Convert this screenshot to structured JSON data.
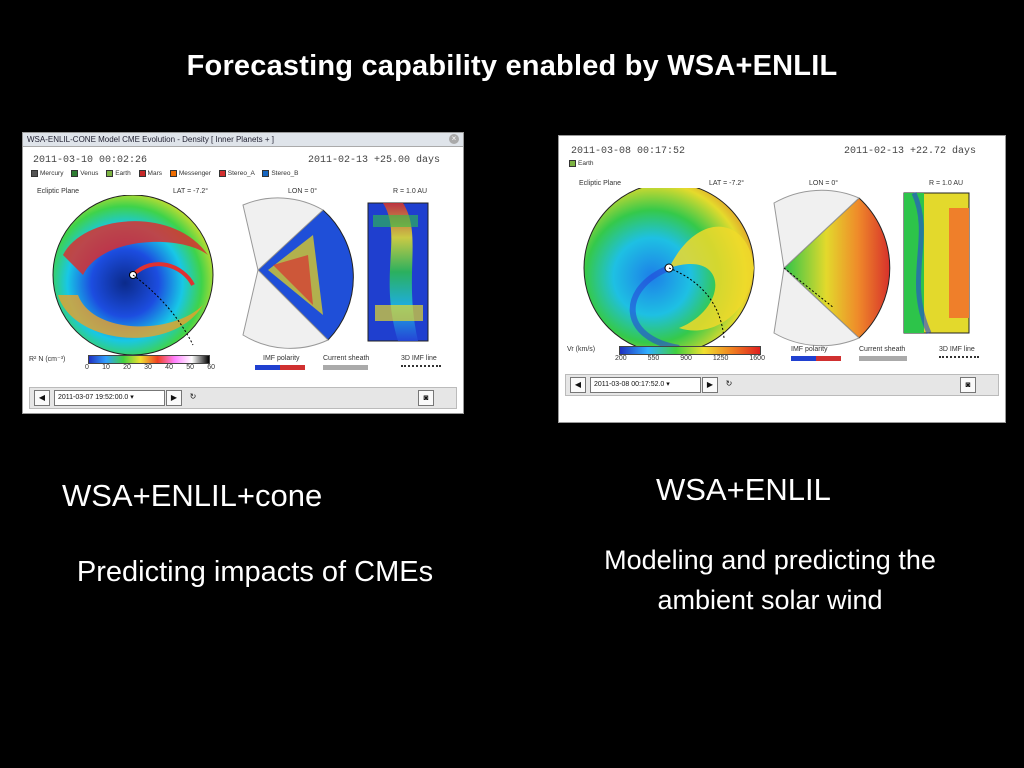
{
  "title": "Forecasting capability enabled by WSA+ENLIL",
  "left": {
    "window_title": "WSA-ENLIL-CONE Model CME Evolution - Density [ Inner Planets + ]",
    "timestamp": "2011-03-10 00:02:26",
    "run_time": "2011-02-13 +25.00 days",
    "planets": [
      "Mercury",
      "Venus",
      "Earth",
      "Mars",
      "Messenger",
      "Stereo_A",
      "Stereo_B"
    ],
    "planet_colors": [
      "#555555",
      "#2e7d32",
      "#7cb342",
      "#c62828",
      "#ef6c00",
      "#d32f2f",
      "#1565c0"
    ],
    "ecliptic": "Ecliptic Plane",
    "lat": "LAT = -7.2°",
    "lon": "LON = 0°",
    "radius": "R = 1.0 AU",
    "colorbar_label": "R² N (cm⁻³)",
    "colorbar_ticks": [
      "0",
      "10",
      "20",
      "30",
      "40",
      "50",
      "60"
    ],
    "imf_label": "IMF polarity",
    "sheath_label": "Current sheath",
    "line_label": "3D IMF line",
    "selector_date": "2011-03-07 19:52:00.0"
  },
  "right": {
    "timestamp": "2011-03-08 00:17:52",
    "run_time": "2011-02-13 +22.72 days",
    "planets": [
      "Earth"
    ],
    "ecliptic": "Ecliptic Plane",
    "lat": "LAT = -7.2°",
    "lon": "LON = 0°",
    "radius": "R = 1.0 AU",
    "colorbar_label": "Vr (km/s)",
    "colorbar_ticks": [
      "200",
      "550",
      "900",
      "1250",
      "1600"
    ],
    "imf_label": "IMF polarity",
    "sheath_label": "Current sheath",
    "line_label": "3D IMF line",
    "selector_date": "2011-03-08 00:17:52.0"
  },
  "captions": {
    "left_model": "WSA+ENLIL+cone",
    "left_desc": "Predicting impacts of CMEs",
    "right_model": "WSA+ENLIL",
    "right_desc_1": "Modeling and predicting the",
    "right_desc_2": "ambient solar wind"
  }
}
